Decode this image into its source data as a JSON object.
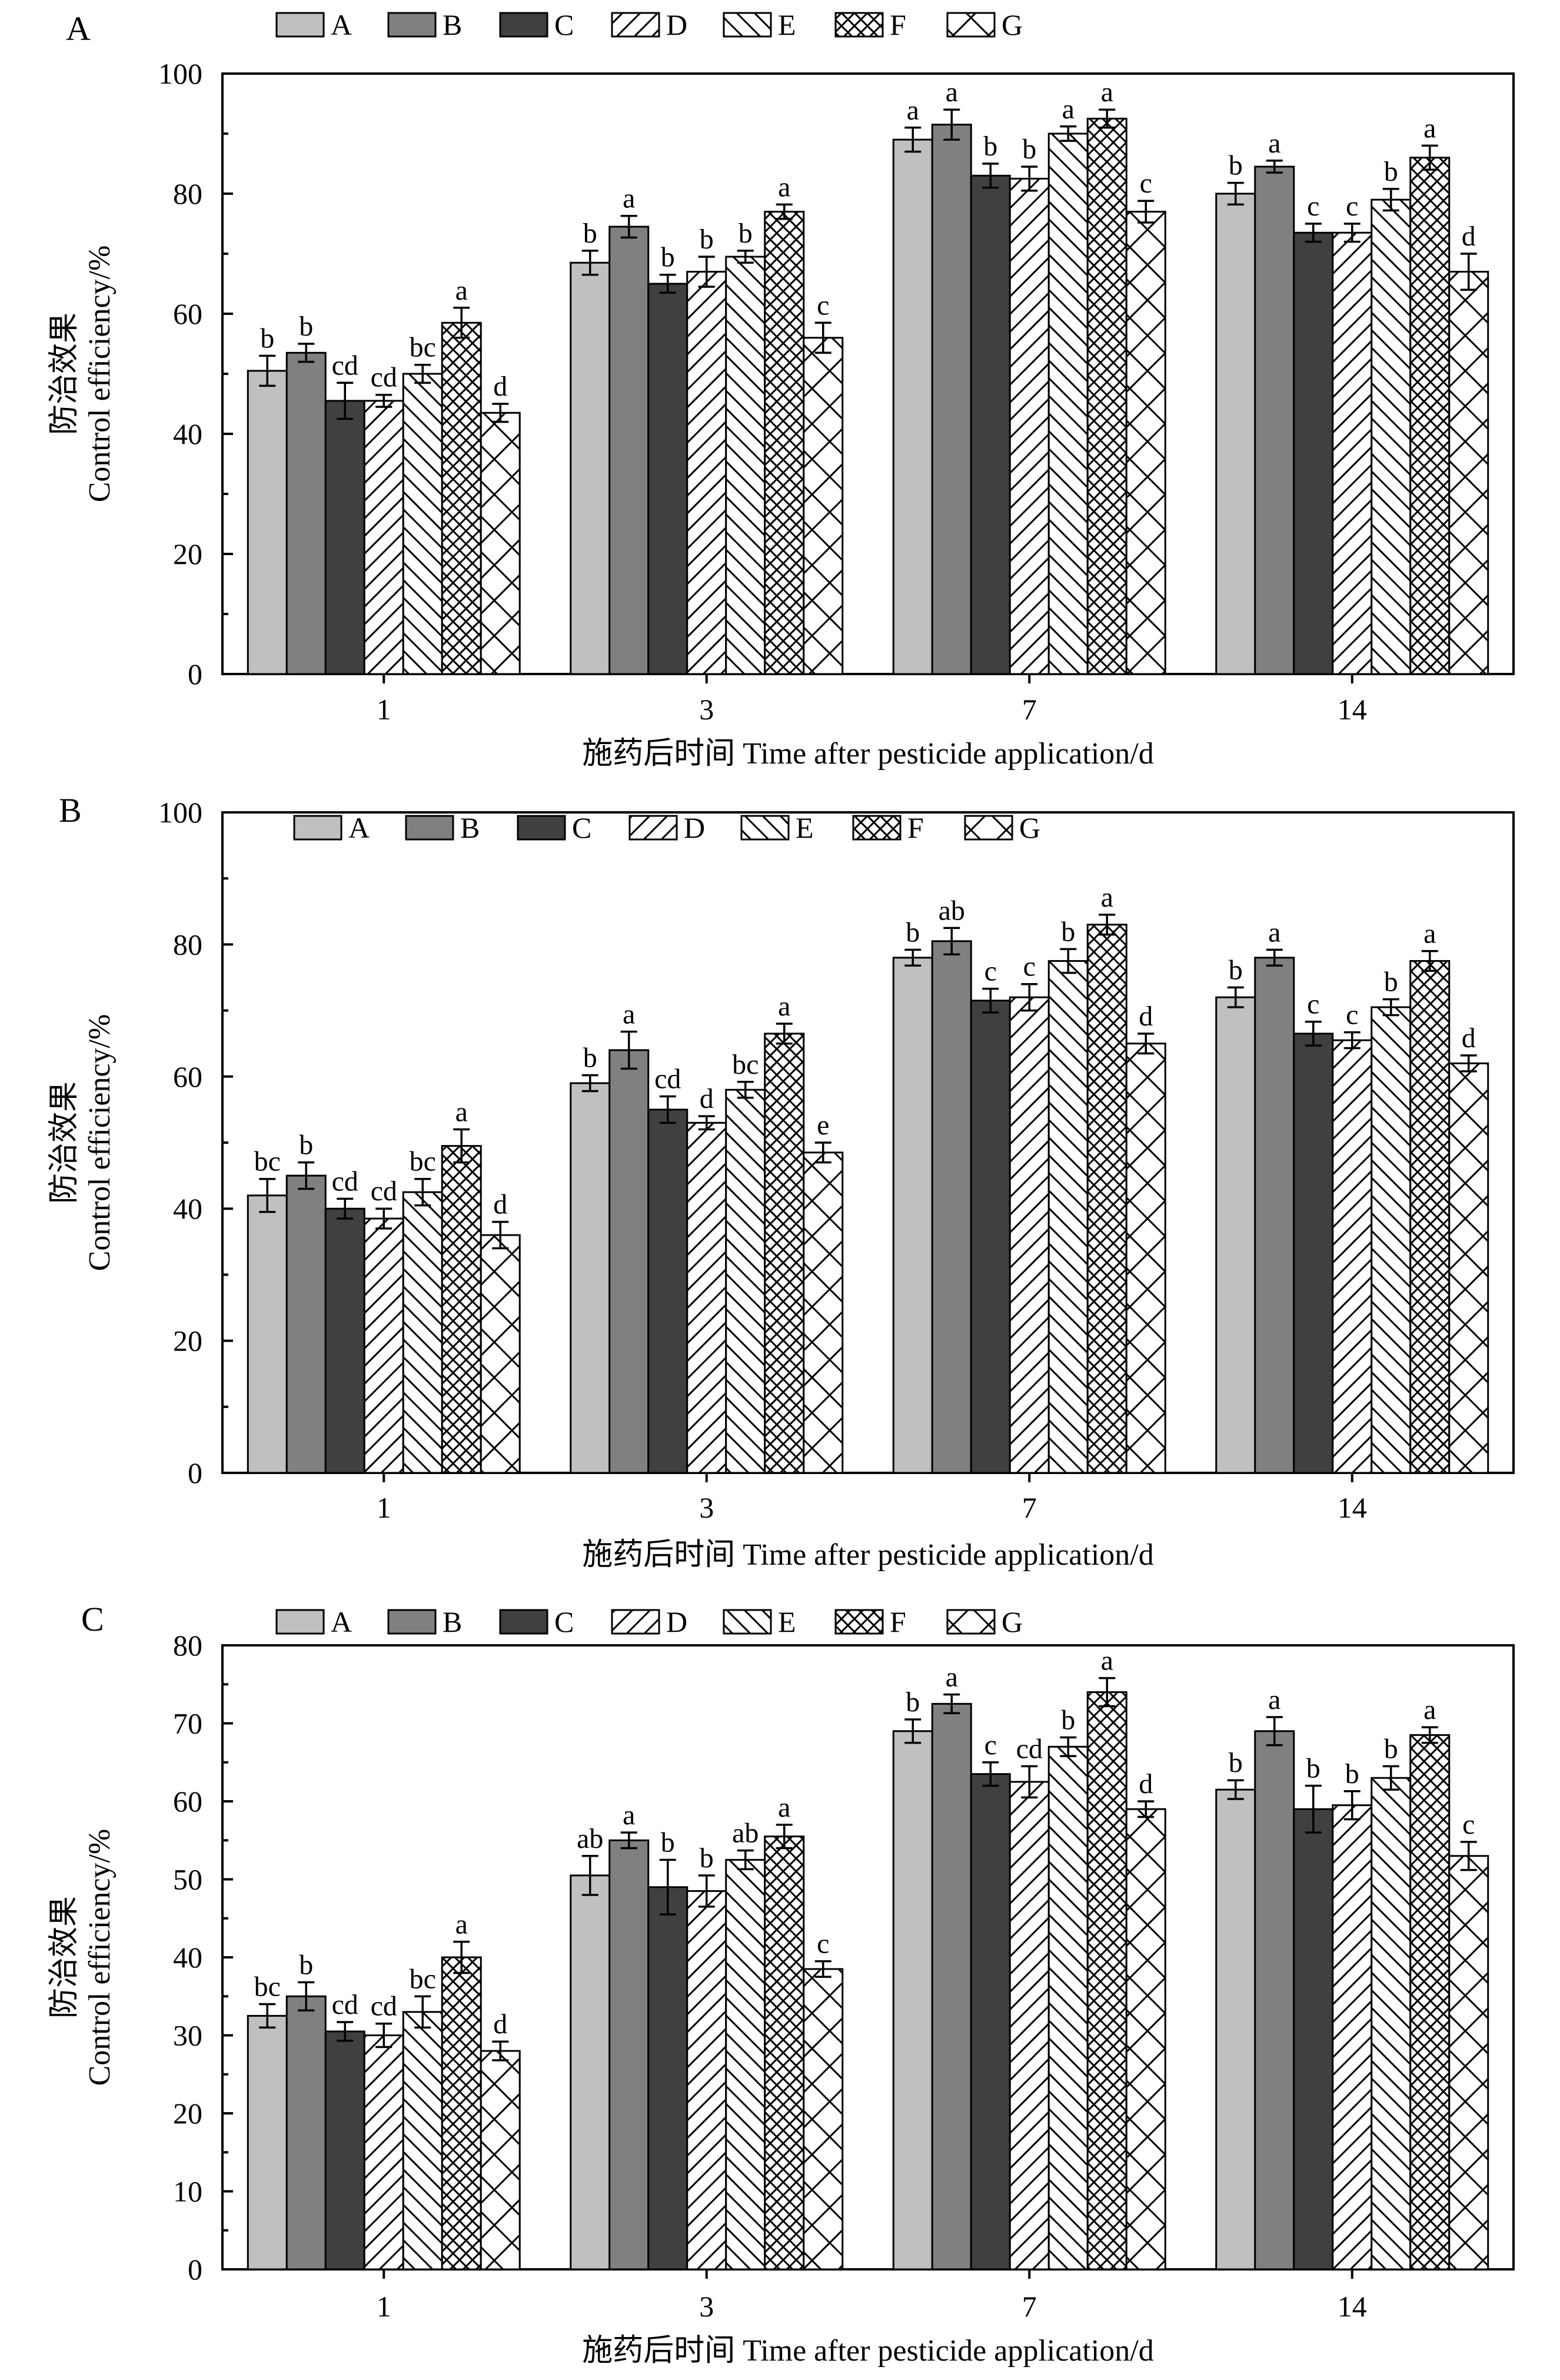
{
  "legend_labels": [
    "A",
    "B",
    "C",
    "D",
    "E",
    "F",
    "G"
  ],
  "series_styles": {
    "A": {
      "fill": "#c0c0c0",
      "pattern": "none"
    },
    "B": {
      "fill": "#808080",
      "pattern": "none"
    },
    "C": {
      "fill": "#404040",
      "pattern": "none"
    },
    "D": {
      "fill": "#ffffff",
      "pattern": "forward-diagonal"
    },
    "E": {
      "fill": "#ffffff",
      "pattern": "backward-diagonal"
    },
    "F": {
      "fill": "#ffffff",
      "pattern": "cross-hatch"
    },
    "G": {
      "fill": "#ffffff",
      "pattern": "large-x"
    }
  },
  "chart_data": [
    {
      "type": "bar",
      "panel_label": "A",
      "categories": [
        "1",
        "3",
        "7",
        "14"
      ],
      "xlabel": "施药后时间 Time after pesticide application/d",
      "ylabel_cn": "防治效果",
      "ylabel_en": "Control efficiency/%",
      "ylim": [
        0,
        100
      ],
      "yticks": [
        0,
        20,
        40,
        60,
        80,
        100
      ],
      "grid": false,
      "legend": "top",
      "series": [
        {
          "name": "A",
          "values": [
            50.5,
            68.5,
            89.0,
            80.0
          ],
          "errors": [
            2.5,
            2.0,
            2.0,
            1.8
          ],
          "letters": [
            "b",
            "b",
            "a",
            "b"
          ]
        },
        {
          "name": "B",
          "values": [
            53.5,
            74.5,
            91.5,
            84.5
          ],
          "errors": [
            1.5,
            1.8,
            2.5,
            1.0
          ],
          "letters": [
            "b",
            "a",
            "a",
            "a"
          ]
        },
        {
          "name": "C",
          "values": [
            45.5,
            65.0,
            83.0,
            73.5
          ],
          "errors": [
            3.0,
            1.5,
            2.0,
            1.5
          ],
          "letters": [
            "cd",
            "b",
            "b",
            "c"
          ]
        },
        {
          "name": "D",
          "values": [
            45.5,
            67.0,
            82.5,
            73.5
          ],
          "errors": [
            1.0,
            2.5,
            2.0,
            1.5
          ],
          "letters": [
            "cd",
            "b",
            "b",
            "c"
          ]
        },
        {
          "name": "E",
          "values": [
            50.0,
            69.5,
            90.0,
            79.0
          ],
          "errors": [
            1.5,
            1.0,
            1.2,
            1.8
          ],
          "letters": [
            "bc",
            "b",
            "a",
            "b"
          ]
        },
        {
          "name": "F",
          "values": [
            58.5,
            77.0,
            92.5,
            86.0
          ],
          "errors": [
            2.5,
            1.2,
            1.5,
            2.0
          ],
          "letters": [
            "a",
            "a",
            "a",
            "a"
          ]
        },
        {
          "name": "G",
          "values": [
            43.5,
            56.0,
            77.0,
            67.0
          ],
          "errors": [
            1.5,
            2.5,
            1.8,
            3.0
          ],
          "letters": [
            "d",
            "c",
            "c",
            "d"
          ]
        }
      ]
    },
    {
      "type": "bar",
      "panel_label": "B",
      "categories": [
        "1",
        "3",
        "7",
        "14"
      ],
      "xlabel": "施药后时间 Time after pesticide application/d",
      "ylabel_cn": "防治效果",
      "ylabel_en": "Control efficiency/%",
      "ylim": [
        0,
        100
      ],
      "yticks": [
        0,
        20,
        40,
        60,
        80,
        100
      ],
      "grid": false,
      "legend": "top",
      "series": [
        {
          "name": "A",
          "values": [
            42.0,
            59.0,
            78.0,
            72.0
          ],
          "errors": [
            2.5,
            1.2,
            1.2,
            1.5
          ],
          "letters": [
            "bc",
            "b",
            "b",
            "b"
          ]
        },
        {
          "name": "B",
          "values": [
            45.0,
            64.0,
            80.5,
            78.0
          ],
          "errors": [
            2.0,
            2.8,
            2.0,
            1.2
          ],
          "letters": [
            "b",
            "a",
            "ab",
            "a"
          ]
        },
        {
          "name": "C",
          "values": [
            40.0,
            55.0,
            71.5,
            66.5
          ],
          "errors": [
            1.5,
            2.0,
            1.8,
            1.8
          ],
          "letters": [
            "cd",
            "cd",
            "c",
            "c"
          ]
        },
        {
          "name": "D",
          "values": [
            38.5,
            53.0,
            72.0,
            65.5
          ],
          "errors": [
            1.5,
            1.0,
            2.0,
            1.2
          ],
          "letters": [
            "cd",
            "d",
            "c",
            "c"
          ]
        },
        {
          "name": "E",
          "values": [
            42.5,
            58.0,
            77.5,
            70.5
          ],
          "errors": [
            2.0,
            1.2,
            1.8,
            1.2
          ],
          "letters": [
            "bc",
            "bc",
            "b",
            "b"
          ]
        },
        {
          "name": "F",
          "values": [
            49.5,
            66.5,
            83.0,
            77.5
          ],
          "errors": [
            2.5,
            1.5,
            1.5,
            1.5
          ],
          "letters": [
            "a",
            "a",
            "a",
            "a"
          ]
        },
        {
          "name": "G",
          "values": [
            36.0,
            48.5,
            65.0,
            62.0
          ],
          "errors": [
            2.0,
            1.5,
            1.5,
            1.2
          ],
          "letters": [
            "d",
            "e",
            "d",
            "d"
          ]
        }
      ]
    },
    {
      "type": "bar",
      "panel_label": "C",
      "categories": [
        "1",
        "3",
        "7",
        "14"
      ],
      "xlabel": "施药后时间 Time after pesticide application/d",
      "ylabel_cn": "防治效果",
      "ylabel_en": "Control efficiency/%",
      "ylim": [
        0,
        80
      ],
      "yticks": [
        0,
        10,
        20,
        30,
        40,
        50,
        60,
        70,
        80
      ],
      "grid": false,
      "legend": "top",
      "series": [
        {
          "name": "A",
          "values": [
            32.5,
            50.5,
            69.0,
            61.5
          ],
          "errors": [
            1.5,
            2.5,
            1.5,
            1.2
          ],
          "letters": [
            "bc",
            "ab",
            "b",
            "b"
          ]
        },
        {
          "name": "B",
          "values": [
            35.0,
            55.0,
            72.5,
            69.0
          ],
          "errors": [
            1.8,
            1.0,
            1.2,
            1.8
          ],
          "letters": [
            "b",
            "a",
            "a",
            "a"
          ]
        },
        {
          "name": "C",
          "values": [
            30.5,
            49.0,
            63.5,
            59.0
          ],
          "errors": [
            1.2,
            3.5,
            1.5,
            3.0
          ],
          "letters": [
            "cd",
            "b",
            "c",
            "b"
          ]
        },
        {
          "name": "D",
          "values": [
            30.0,
            48.5,
            62.5,
            59.5
          ],
          "errors": [
            1.5,
            2.0,
            2.0,
            1.8
          ],
          "letters": [
            "cd",
            "b",
            "cd",
            "b"
          ]
        },
        {
          "name": "E",
          "values": [
            33.0,
            52.5,
            67.0,
            63.0
          ],
          "errors": [
            2.0,
            1.2,
            1.2,
            1.5
          ],
          "letters": [
            "bc",
            "ab",
            "b",
            "b"
          ]
        },
        {
          "name": "F",
          "values": [
            40.0,
            55.5,
            74.0,
            68.5
          ],
          "errors": [
            2.0,
            1.5,
            1.8,
            1.0
          ],
          "letters": [
            "a",
            "a",
            "a",
            "a"
          ]
        },
        {
          "name": "G",
          "values": [
            28.0,
            38.5,
            59.0,
            53.0
          ],
          "errors": [
            1.2,
            1.0,
            1.0,
            1.8
          ],
          "letters": [
            "d",
            "c",
            "d",
            "c"
          ]
        }
      ]
    }
  ]
}
